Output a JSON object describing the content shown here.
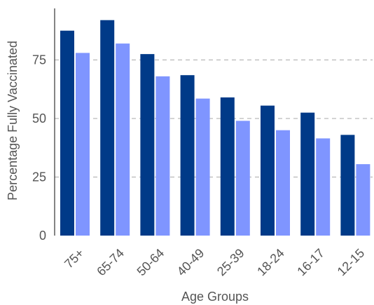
{
  "chart_data": {
    "type": "bar",
    "categories": [
      "75+",
      "65-74",
      "50-64",
      "40-49",
      "25-39",
      "18-24",
      "16-17",
      "12-15"
    ],
    "series": [
      {
        "values": [
          87.5,
          92,
          77.5,
          68.5,
          59,
          55.5,
          52.5,
          43
        ]
      },
      {
        "values": [
          78,
          82,
          68,
          58.5,
          49,
          45,
          41.5,
          30.5
        ]
      }
    ],
    "xlabel": "Age Groups",
    "ylabel": "Percentage Fully Vaccinated",
    "ylim": [
      0,
      97
    ],
    "yticks": [
      0,
      25,
      50,
      75
    ],
    "grid": "horizontal dashed at ticks",
    "legend": "none"
  },
  "colors": {
    "series": [
      "#003a88",
      "#7f95ff"
    ],
    "grid": "#aaaaaa",
    "axis": "#333333",
    "text": "#555555"
  }
}
